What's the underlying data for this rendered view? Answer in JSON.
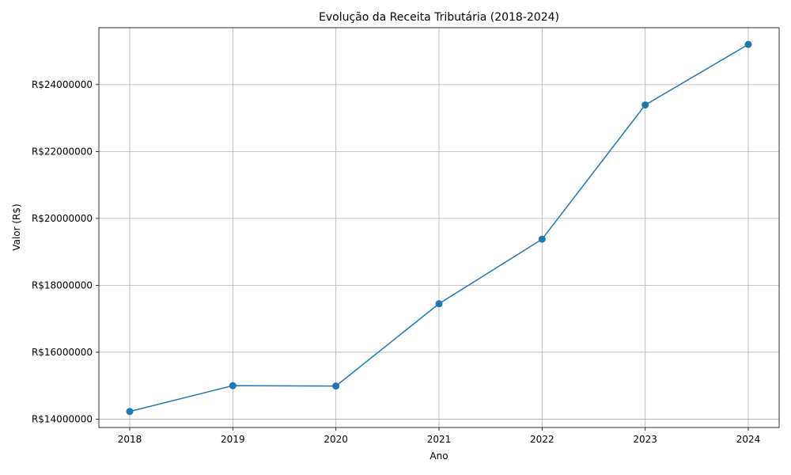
{
  "chart_data": {
    "type": "line",
    "title": "Evolução da Receita Tributária (2018-2024)",
    "xlabel": "Ano",
    "ylabel": "Valor (R$)",
    "x": [
      "2018",
      "2019",
      "2020",
      "2021",
      "2022",
      "2023",
      "2024"
    ],
    "series": [
      {
        "values": [
          14230000,
          15000000,
          14990000,
          17450000,
          19380000,
          23390000,
          25200000
        ],
        "color": "#1f77b4",
        "marker": "circle"
      }
    ],
    "yticks": [
      14000000,
      16000000,
      18000000,
      20000000,
      22000000,
      24000000
    ],
    "ytick_labels": [
      "R$14000000",
      "R$16000000",
      "R$18000000",
      "R$20000000",
      "R$22000000",
      "R$24000000"
    ],
    "ylim": [
      13750000,
      25700000
    ],
    "grid": true,
    "legend": "none"
  }
}
